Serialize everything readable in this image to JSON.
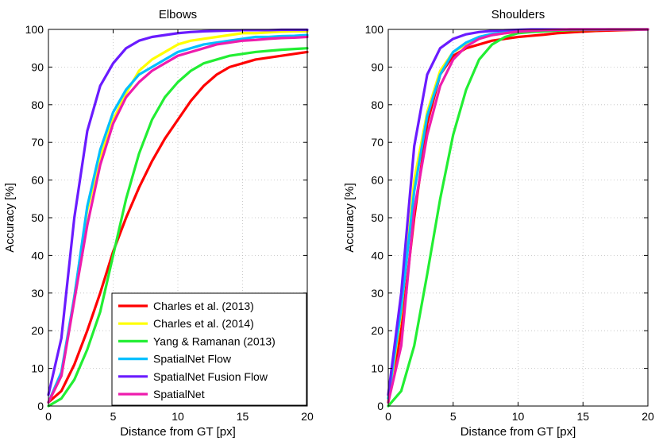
{
  "chart_data": [
    {
      "type": "line",
      "title": "Elbows",
      "xlabel": "Distance from GT [px]",
      "ylabel": "Accuracy [%]",
      "xlim": [
        0,
        20
      ],
      "ylim": [
        0,
        100
      ],
      "xticks": [
        "0",
        "5",
        "10",
        "15",
        "20"
      ],
      "yticks": [
        "0",
        "10",
        "20",
        "30",
        "40",
        "50",
        "60",
        "70",
        "80",
        "90",
        "100"
      ],
      "grid": true,
      "legend": "bottom-right",
      "x": [
        0,
        1,
        2,
        3,
        4,
        5,
        6,
        7,
        8,
        9,
        10,
        11,
        12,
        13,
        14,
        15,
        16,
        17,
        18,
        19,
        20
      ],
      "series": [
        {
          "name": "Charles et al. (2013)",
          "color": "#ff0000",
          "values": [
            1,
            4,
            11,
            20,
            30,
            41,
            50,
            58,
            65,
            71,
            76,
            81,
            85,
            88,
            90,
            91,
            92,
            92.5,
            93,
            93.5,
            94
          ]
        },
        {
          "name": "Charles et al. (2014)",
          "color": "#ffff00",
          "values": [
            1,
            8,
            29,
            52,
            66,
            76,
            83,
            89,
            92,
            94,
            96,
            97,
            97.5,
            98,
            98.5,
            99,
            99,
            99.2,
            99.4,
            99.5,
            99.5
          ]
        },
        {
          "name": "Yang & Ramanan (2013)",
          "color": "#22ee33",
          "values": [
            0,
            2,
            7,
            15,
            25,
            40,
            55,
            67,
            76,
            82,
            86,
            89,
            91,
            92,
            93,
            93.5,
            94,
            94.3,
            94.6,
            94.8,
            95
          ]
        },
        {
          "name": "SpatialNet Flow",
          "color": "#00bfff",
          "values": [
            1,
            9,
            29,
            53,
            68,
            78,
            84,
            88,
            90,
            92,
            94,
            95,
            96,
            96.5,
            97,
            97.5,
            98,
            98,
            98.2,
            98.3,
            98.5
          ]
        },
        {
          "name": "SpatialNet Fusion Flow",
          "color": "#6a1bff",
          "values": [
            3,
            18,
            50,
            73,
            85,
            91,
            95,
            97,
            98,
            98.5,
            99,
            99.3,
            99.5,
            99.6,
            99.7,
            99.8,
            99.8,
            99.8,
            99.9,
            99.9,
            99.9
          ]
        },
        {
          "name": "SpatialNet",
          "color": "#ee1cad",
          "values": [
            1,
            8,
            28,
            48,
            64,
            75,
            82,
            86,
            89,
            91,
            93,
            94,
            95,
            96,
            96.5,
            97,
            97.2,
            97.5,
            97.7,
            97.8,
            98
          ]
        }
      ]
    },
    {
      "type": "line",
      "title": "Shoulders",
      "xlabel": "Distance from GT [px]",
      "ylabel": "Accuracy [%]",
      "xlim": [
        0,
        20
      ],
      "ylim": [
        0,
        100
      ],
      "xticks": [
        "0",
        "5",
        "10",
        "15",
        "20"
      ],
      "yticks": [
        "0",
        "10",
        "20",
        "30",
        "40",
        "50",
        "60",
        "70",
        "80",
        "90",
        "100"
      ],
      "grid": true,
      "x": [
        0,
        1,
        2,
        3,
        4,
        5,
        6,
        7,
        8,
        9,
        10,
        11,
        12,
        13,
        14,
        15,
        16,
        17,
        18,
        19,
        20
      ],
      "series": [
        {
          "name": "Charles et al. (2013)",
          "color": "#ff0000",
          "values": [
            1,
            20,
            50,
            75,
            88,
            93,
            95,
            96,
            97,
            97.5,
            98,
            98.3,
            98.6,
            99,
            99.2,
            99.4,
            99.6,
            99.7,
            99.8,
            99.9,
            100
          ]
        },
        {
          "name": "Charles et al. (2014)",
          "color": "#ffff00",
          "values": [
            1,
            25,
            60,
            78,
            89,
            94,
            96,
            97.5,
            98.5,
            99,
            99.3,
            99.5,
            99.6,
            99.7,
            99.8,
            99.9,
            99.9,
            100,
            100,
            100,
            100
          ]
        },
        {
          "name": "Yang & Ramanan (2013)",
          "color": "#22ee33",
          "values": [
            0,
            4,
            16,
            35,
            55,
            72,
            84,
            92,
            96,
            98,
            99,
            99.3,
            99.5,
            99.7,
            99.8,
            99.9,
            99.9,
            100,
            100,
            100,
            100
          ]
        },
        {
          "name": "SpatialNet Flow",
          "color": "#00bfff",
          "values": [
            2,
            26,
            57,
            77,
            88,
            94,
            96.5,
            98,
            98.8,
            99.3,
            99.6,
            99.8,
            99.9,
            99.9,
            100,
            100,
            100,
            100,
            100,
            100,
            100
          ]
        },
        {
          "name": "SpatialNet Fusion Flow",
          "color": "#6a1bff",
          "values": [
            3,
            30,
            69,
            88,
            95,
            97.5,
            98.7,
            99.3,
            99.6,
            99.8,
            99.9,
            100,
            100,
            100,
            100,
            100,
            100,
            100,
            100,
            100,
            100
          ]
        },
        {
          "name": "SpatialNet",
          "color": "#ee1cad",
          "values": [
            1,
            16,
            52,
            72,
            85,
            92,
            95.5,
            97.5,
            98.5,
            99,
            99.4,
            99.6,
            99.8,
            99.9,
            100,
            100,
            100,
            100,
            100,
            100,
            100
          ]
        }
      ]
    }
  ]
}
